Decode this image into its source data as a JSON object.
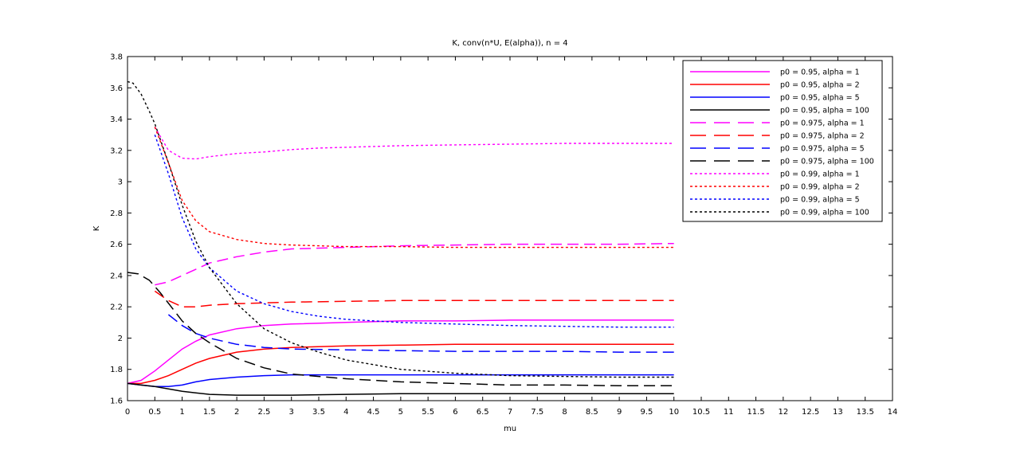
{
  "chart_data": {
    "type": "line",
    "title": "K, conv(n*U, E(alpha)), n = 4",
    "xlabel": "mu",
    "ylabel": "K",
    "xlim": [
      0,
      14
    ],
    "ylim": [
      1.6,
      3.8
    ],
    "xticks": [
      "0",
      "0.5",
      "1",
      "1.5",
      "2",
      "2.5",
      "3",
      "3.5",
      "4",
      "4.5",
      "5",
      "5.5",
      "6",
      "6.5",
      "7",
      "7.5",
      "8",
      "8.5",
      "9",
      "9.5",
      "10",
      "10.5",
      "11",
      "11.5",
      "12",
      "12.5",
      "13",
      "13.5",
      "14"
    ],
    "yticks": [
      "1.6",
      "1.8",
      "2",
      "2.2",
      "2.4",
      "2.6",
      "2.8",
      "3",
      "3.2",
      "3.4",
      "3.6",
      "3.8"
    ],
    "grid": false,
    "legend_position": "top-right",
    "series": [
      {
        "name": "p0 = 0.95, alpha = 1",
        "color": "#ff00ff",
        "style": "solid",
        "x": [
          0,
          0.25,
          0.5,
          0.75,
          1,
          1.25,
          1.5,
          2,
          2.5,
          3,
          4,
          5,
          6,
          7,
          8,
          9,
          10
        ],
        "y": [
          1.71,
          1.73,
          1.79,
          1.86,
          1.93,
          1.98,
          2.02,
          2.06,
          2.08,
          2.09,
          2.1,
          2.11,
          2.11,
          2.115,
          2.115,
          2.115,
          2.115
        ]
      },
      {
        "name": "p0 = 0.95, alpha = 2",
        "color": "#ff0000",
        "style": "solid",
        "x": [
          0,
          0.25,
          0.5,
          0.75,
          1,
          1.25,
          1.5,
          2,
          2.5,
          3,
          4,
          5,
          6,
          7,
          8,
          9,
          10
        ],
        "y": [
          1.71,
          1.71,
          1.73,
          1.76,
          1.8,
          1.84,
          1.87,
          1.91,
          1.93,
          1.94,
          1.95,
          1.955,
          1.96,
          1.96,
          1.96,
          1.96,
          1.96
        ]
      },
      {
        "name": "p0 = 0.95, alpha = 5",
        "color": "#0000ff",
        "style": "solid",
        "x": [
          0,
          0.25,
          0.5,
          0.75,
          1,
          1.25,
          1.5,
          2,
          2.5,
          3,
          4,
          5,
          6,
          7,
          8,
          9,
          10
        ],
        "y": [
          1.71,
          1.7,
          1.69,
          1.69,
          1.7,
          1.72,
          1.735,
          1.75,
          1.76,
          1.765,
          1.765,
          1.765,
          1.765,
          1.765,
          1.765,
          1.765,
          1.765
        ]
      },
      {
        "name": "p0 = 0.95, alpha = 100",
        "color": "#000000",
        "style": "solid",
        "x": [
          0,
          0.25,
          0.5,
          0.75,
          1,
          1.25,
          1.5,
          2,
          2.5,
          3,
          4,
          5,
          6,
          7,
          8,
          9,
          10
        ],
        "y": [
          1.71,
          1.7,
          1.69,
          1.675,
          1.66,
          1.65,
          1.64,
          1.635,
          1.635,
          1.635,
          1.64,
          1.645,
          1.645,
          1.645,
          1.645,
          1.645,
          1.645
        ]
      },
      {
        "name": "p0 = 0.975, alpha = 1",
        "color": "#ff00ff",
        "style": "dashed",
        "x": [
          0.5,
          0.75,
          1,
          1.5,
          2,
          2.5,
          3,
          4,
          5,
          6,
          7,
          8,
          9,
          10
        ],
        "y": [
          2.34,
          2.36,
          2.4,
          2.48,
          2.52,
          2.55,
          2.57,
          2.58,
          2.59,
          2.595,
          2.6,
          2.6,
          2.6,
          2.605
        ]
      },
      {
        "name": "p0 = 0.975, alpha = 2",
        "color": "#ff0000",
        "style": "dashed",
        "x": [
          0.5,
          0.75,
          1,
          1.25,
          1.5,
          2,
          3,
          4,
          5,
          6,
          7,
          8,
          9,
          10
        ],
        "y": [
          2.3,
          2.24,
          2.2,
          2.2,
          2.21,
          2.22,
          2.23,
          2.235,
          2.24,
          2.24,
          2.24,
          2.24,
          2.24,
          2.24
        ]
      },
      {
        "name": "p0 = 0.975, alpha = 5",
        "color": "#0000ff",
        "style": "dashed",
        "x": [
          0.75,
          1,
          1.25,
          1.5,
          2,
          2.5,
          3,
          4,
          5,
          6,
          7,
          8,
          9,
          10
        ],
        "y": [
          2.15,
          2.08,
          2.03,
          2.0,
          1.96,
          1.94,
          1.93,
          1.925,
          1.92,
          1.915,
          1.915,
          1.915,
          1.91,
          1.91
        ]
      },
      {
        "name": "p0 = 0.975, alpha = 100",
        "color": "#000000",
        "style": "dashed",
        "x": [
          0,
          0.2,
          0.4,
          0.6,
          0.8,
          1,
          1.25,
          1.5,
          2,
          2.5,
          3,
          3.5,
          4,
          5,
          6,
          7,
          8,
          9,
          10
        ],
        "y": [
          2.42,
          2.41,
          2.37,
          2.29,
          2.2,
          2.11,
          2.03,
          1.97,
          1.87,
          1.81,
          1.77,
          1.755,
          1.74,
          1.72,
          1.71,
          1.7,
          1.7,
          1.695,
          1.695
        ]
      },
      {
        "name": "p0 = 0.99, alpha = 1",
        "color": "#ff00ff",
        "style": "dotted",
        "x": [
          0.5,
          0.75,
          1,
          1.25,
          1.5,
          2,
          2.5,
          3,
          3.5,
          4,
          5,
          6,
          7,
          8,
          9,
          10
        ],
        "y": [
          3.35,
          3.2,
          3.15,
          3.145,
          3.16,
          3.18,
          3.19,
          3.205,
          3.215,
          3.22,
          3.23,
          3.235,
          3.24,
          3.245,
          3.245,
          3.245
        ]
      },
      {
        "name": "p0 = 0.99, alpha = 2",
        "color": "#ff0000",
        "style": "dotted",
        "x": [
          0.5,
          0.75,
          1,
          1.25,
          1.5,
          2,
          2.5,
          3,
          3.5,
          4,
          5,
          6,
          7,
          8,
          9,
          10
        ],
        "y": [
          3.35,
          3.12,
          2.88,
          2.75,
          2.68,
          2.63,
          2.605,
          2.595,
          2.59,
          2.585,
          2.585,
          2.58,
          2.58,
          2.58,
          2.58,
          2.58
        ]
      },
      {
        "name": "p0 = 0.99, alpha = 5",
        "color": "#0000ff",
        "style": "dotted",
        "x": [
          0.5,
          0.75,
          1,
          1.25,
          1.5,
          2,
          2.5,
          3,
          3.5,
          4,
          5,
          6,
          7,
          8,
          9,
          10
        ],
        "y": [
          3.3,
          3.05,
          2.77,
          2.57,
          2.45,
          2.3,
          2.22,
          2.17,
          2.14,
          2.12,
          2.1,
          2.09,
          2.08,
          2.075,
          2.07,
          2.07
        ]
      },
      {
        "name": "p0 = 0.99, alpha = 100",
        "color": "#000000",
        "style": "dotted",
        "x": [
          0,
          0.1,
          0.25,
          0.4,
          0.5,
          0.75,
          1,
          1.25,
          1.5,
          2,
          2.5,
          3,
          3.5,
          4,
          5,
          6,
          7,
          8,
          9,
          10
        ],
        "y": [
          3.64,
          3.63,
          3.56,
          3.45,
          3.37,
          3.12,
          2.85,
          2.62,
          2.45,
          2.22,
          2.06,
          1.97,
          1.91,
          1.86,
          1.8,
          1.775,
          1.76,
          1.755,
          1.75,
          1.75
        ]
      }
    ]
  }
}
